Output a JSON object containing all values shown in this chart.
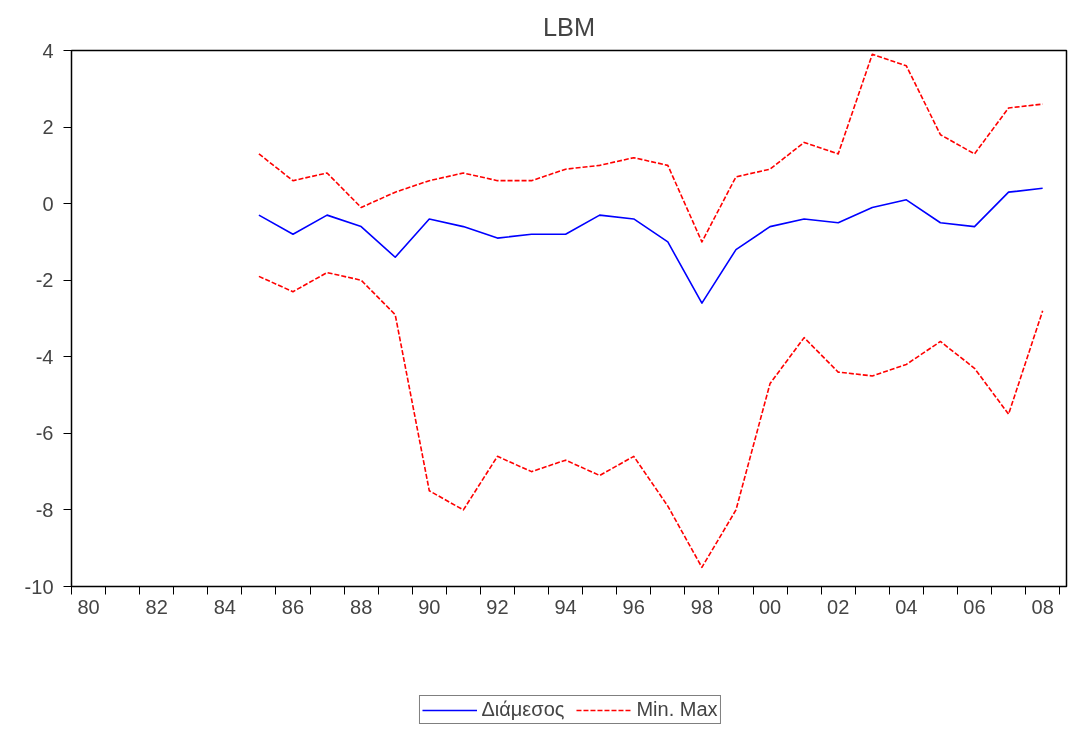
{
  "chart_data": {
    "type": "line",
    "title": "LBM",
    "x": [
      1985,
      1986,
      1987,
      1988,
      1989,
      1990,
      1991,
      1992,
      1993,
      1994,
      1995,
      1996,
      1997,
      1998,
      1999,
      2000,
      2001,
      2002,
      2003,
      2004,
      2005,
      2006,
      2007,
      2008
    ],
    "series": [
      {
        "name": "Διάμεσος",
        "color": "#0000ff",
        "line_style": "solid",
        "values": [
          -0.3,
          -0.8,
          -0.3,
          -0.6,
          -1.4,
          -0.4,
          -0.6,
          -0.9,
          -0.8,
          -0.8,
          -0.3,
          -0.4,
          -1.0,
          -2.6,
          -1.2,
          -0.6,
          -0.4,
          -0.5,
          -0.1,
          0.1,
          -0.5,
          -0.6,
          0.3,
          0.4
        ]
      },
      {
        "name": "Min. Max",
        "color": "#ff0000",
        "line_style": "dashed",
        "values": [
          1.3,
          0.6,
          0.8,
          -0.1,
          0.3,
          0.6,
          0.8,
          0.6,
          0.6,
          0.9,
          1.0,
          1.2,
          1.0,
          -1.0,
          0.7,
          0.9,
          1.6,
          1.3,
          3.9,
          3.6,
          1.8,
          1.3,
          2.5,
          2.6
        ]
      },
      {
        "color": "#ff0000",
        "line_style": "dashed",
        "values": [
          -1.9,
          -2.3,
          -1.8,
          -2.0,
          -2.9,
          -7.5,
          -8.0,
          -6.6,
          -7.0,
          -6.7,
          -7.1,
          -6.6,
          -7.9,
          -9.5,
          -8.0,
          -4.7,
          -3.5,
          -4.4,
          -4.5,
          -4.2,
          -3.6,
          -4.3,
          -5.5,
          -2.8
        ]
      }
    ],
    "xlim": [
      1979.5,
      2008.7
    ],
    "xticks": [
      {
        "value": 1980,
        "label": "80"
      },
      {
        "value": 1982,
        "label": "82"
      },
      {
        "value": 1984,
        "label": "84"
      },
      {
        "value": 1986,
        "label": "86"
      },
      {
        "value": 1988,
        "label": "88"
      },
      {
        "value": 1990,
        "label": "90"
      },
      {
        "value": 1992,
        "label": "92"
      },
      {
        "value": 1994,
        "label": "94"
      },
      {
        "value": 1996,
        "label": "96"
      },
      {
        "value": 1998,
        "label": "98"
      },
      {
        "value": 2000,
        "label": "00"
      },
      {
        "value": 2002,
        "label": "02"
      },
      {
        "value": 2004,
        "label": "04"
      },
      {
        "value": 2006,
        "label": "06"
      },
      {
        "value": 2008,
        "label": "08"
      },
      {
        "value": 1979.5,
        "label": null
      },
      {
        "value": 1980.5,
        "label": null
      },
      {
        "value": 1981.5,
        "label": null
      },
      {
        "value": 1982.5,
        "label": null
      },
      {
        "value": 1983.5,
        "label": null
      },
      {
        "value": 1984.5,
        "label": null
      },
      {
        "value": 1985.5,
        "label": null
      },
      {
        "value": 1986.5,
        "label": null
      },
      {
        "value": 1987.5,
        "label": null
      },
      {
        "value": 1988.5,
        "label": null
      },
      {
        "value": 1989.5,
        "label": null
      },
      {
        "value": 1990.5,
        "label": null
      },
      {
        "value": 1991.5,
        "label": null
      },
      {
        "value": 1992.5,
        "label": null
      },
      {
        "value": 1993.5,
        "label": null
      },
      {
        "value": 1994.5,
        "label": null
      },
      {
        "value": 1995.5,
        "label": null
      },
      {
        "value": 1996.5,
        "label": null
      },
      {
        "value": 1997.5,
        "label": null
      },
      {
        "value": 1998.5,
        "label": null
      },
      {
        "value": 1999.5,
        "label": null
      },
      {
        "value": 2000.5,
        "label": null
      },
      {
        "value": 2001.5,
        "label": null
      },
      {
        "value": 2002.5,
        "label": null
      },
      {
        "value": 2003.5,
        "label": null
      },
      {
        "value": 2004.5,
        "label": null
      },
      {
        "value": 2005.5,
        "label": null
      },
      {
        "value": 2006.5,
        "label": null
      },
      {
        "value": 2007.5,
        "label": null
      },
      {
        "value": 2008.5,
        "label": null
      }
    ],
    "ylim": [
      -10,
      4
    ],
    "yticks": [
      -10,
      -8,
      -6,
      -4,
      -2,
      0,
      2,
      4
    ],
    "grid": false,
    "legend": "bottom"
  }
}
